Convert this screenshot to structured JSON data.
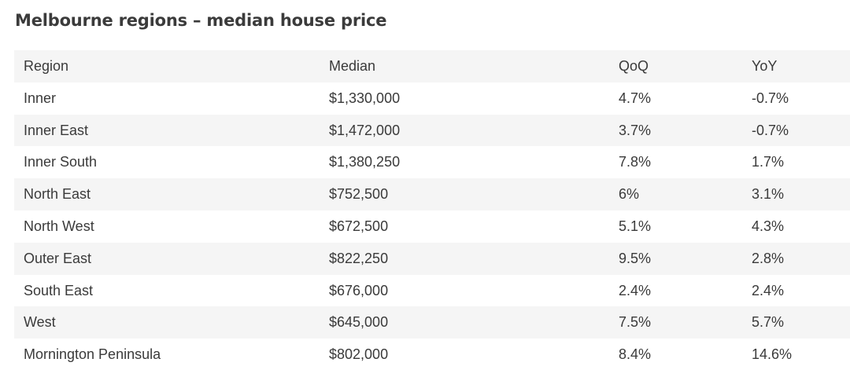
{
  "title": "Melbourne regions – median house price",
  "columns": [
    "Region",
    "Median",
    "QoQ",
    "YoY"
  ],
  "rows": [
    [
      "Inner",
      "$1,330,000",
      "4.7%",
      "-0.7%"
    ],
    [
      "Inner East",
      "$1,472,000",
      "3.7%",
      "-0.7%"
    ],
    [
      "Inner South",
      "$1,380,250",
      "7.8%",
      "1.7%"
    ],
    [
      "North East",
      "$752,500",
      "6%",
      "3.1%"
    ],
    [
      "North West",
      "$672,500",
      "5.1%",
      "4.3%"
    ],
    [
      "Outer East",
      "$822,250",
      "9.5%",
      "2.8%"
    ],
    [
      "South East",
      "$676,000",
      "2.4%",
      "2.4%"
    ],
    [
      "West",
      "$645,000",
      "7.5%",
      "5.7%"
    ],
    [
      "Mornington Peninsula",
      "$802,000",
      "8.4%",
      "14.6%"
    ]
  ]
}
